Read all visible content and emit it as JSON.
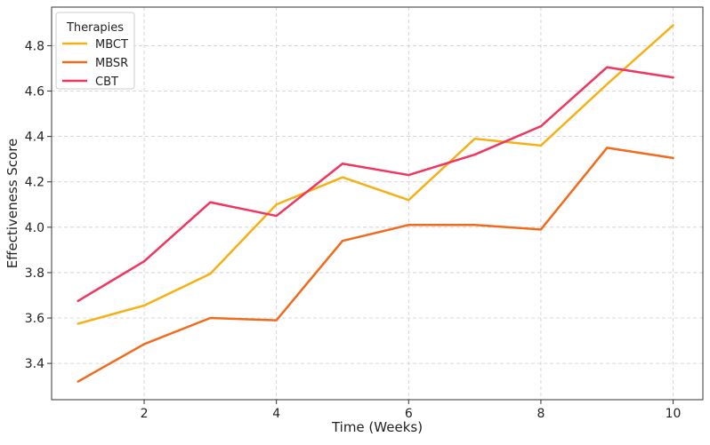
{
  "chart_data": {
    "type": "line",
    "title": "",
    "xlabel": "Time (Weeks)",
    "ylabel": "Effectiveness Score",
    "x": [
      1,
      2,
      3,
      4,
      5,
      6,
      7,
      8,
      9,
      10
    ],
    "xlim": [
      0.6,
      10.45
    ],
    "ylim": [
      3.24,
      4.97
    ],
    "xticks": [
      2,
      4,
      6,
      8,
      10
    ],
    "yticks": [
      3.4,
      3.6,
      3.8,
      4.0,
      4.2,
      4.4,
      4.6,
      4.8
    ],
    "grid": true,
    "legend": {
      "title": "Therapies",
      "position": "upper-left"
    },
    "series": [
      {
        "name": "MBCT",
        "color": "#f5b014",
        "values": [
          3.575,
          3.655,
          3.795,
          4.1,
          4.22,
          4.12,
          4.39,
          4.36,
          4.63,
          4.89
        ]
      },
      {
        "name": "MBSR",
        "color": "#f26b1d",
        "values": [
          3.32,
          3.485,
          3.6,
          3.59,
          3.94,
          4.01,
          4.01,
          3.99,
          4.35,
          4.305
        ]
      },
      {
        "name": "CBT",
        "color": "#f0355f",
        "values": [
          3.675,
          3.85,
          4.11,
          4.05,
          4.28,
          4.23,
          4.32,
          4.445,
          4.705,
          4.66
        ]
      }
    ]
  }
}
